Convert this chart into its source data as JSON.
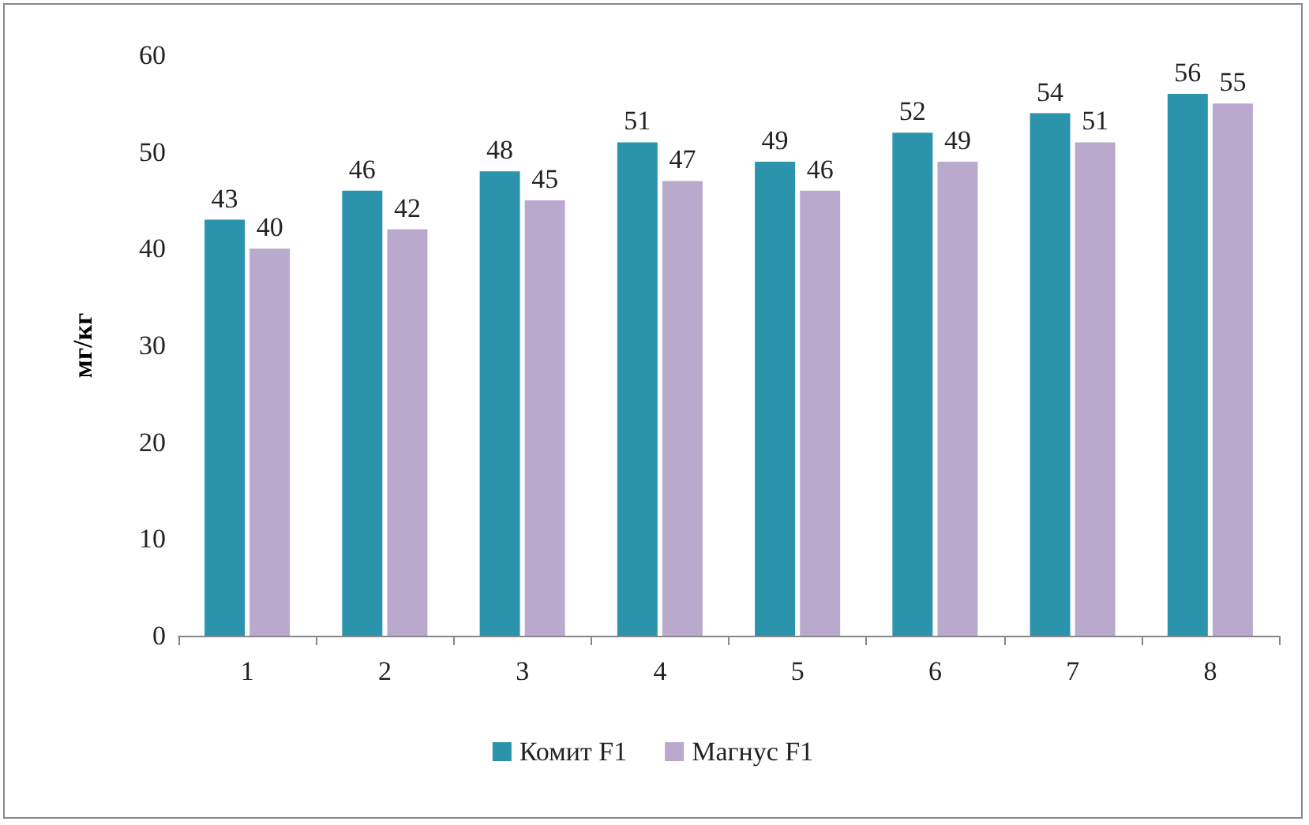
{
  "chart_data": {
    "type": "bar",
    "ylabel": "мг/кг",
    "categories": [
      "1",
      "2",
      "3",
      "4",
      "5",
      "6",
      "7",
      "8"
    ],
    "series": [
      {
        "name": "Комит F1",
        "color": "#2b93ab",
        "values": [
          43,
          46,
          48,
          51,
          49,
          52,
          54,
          56
        ]
      },
      {
        "name": "Магнус F1",
        "color": "#b9a9cc",
        "values": [
          40,
          42,
          45,
          47,
          46,
          49,
          51,
          55
        ]
      }
    ],
    "ylim": [
      0,
      60
    ],
    "yticks": [
      0,
      10,
      20,
      30,
      40,
      50,
      60
    ],
    "data_labels": true,
    "legend": "bottom",
    "grid": false
  }
}
